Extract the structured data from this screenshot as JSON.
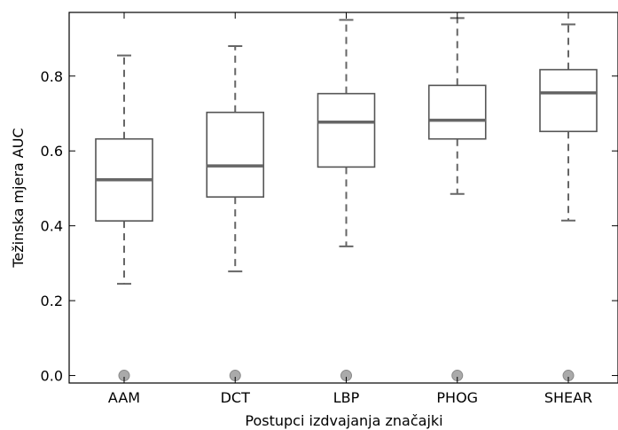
{
  "chart_data": {
    "type": "box",
    "title": "",
    "xlabel": "Postupci izdvajanja značajki",
    "ylabel": "Težinska mjera AUC",
    "ylim": [
      -0.02,
      0.97
    ],
    "yticks": [
      {
        "value": 0.0,
        "label": "0.0"
      },
      {
        "value": 0.2,
        "label": "0.2"
      },
      {
        "value": 0.4,
        "label": "0.4"
      },
      {
        "value": 0.6,
        "label": "0.6"
      },
      {
        "value": 0.8,
        "label": "0.8"
      }
    ],
    "grid": false,
    "boxes": [
      {
        "category": "AAM",
        "whisker_low": 0.245,
        "q1": 0.413,
        "median": 0.523,
        "q3": 0.632,
        "whisker_high": 0.855,
        "outliers": [
          0.0
        ]
      },
      {
        "category": "DCT",
        "whisker_low": 0.278,
        "q1": 0.477,
        "median": 0.56,
        "q3": 0.703,
        "whisker_high": 0.88,
        "outliers": [
          0.0
        ]
      },
      {
        "category": "LBP",
        "whisker_low": 0.345,
        "q1": 0.557,
        "median": 0.677,
        "q3": 0.753,
        "whisker_high": 0.95,
        "outliers": [
          0.0
        ]
      },
      {
        "category": "PHOG",
        "whisker_low": 0.485,
        "q1": 0.632,
        "median": 0.682,
        "q3": 0.775,
        "whisker_high": 0.955,
        "outliers": [
          0.0
        ]
      },
      {
        "category": "SHEAR",
        "whisker_low": 0.414,
        "q1": 0.652,
        "median": 0.755,
        "q3": 0.817,
        "whisker_high": 0.938,
        "outliers": [
          0.0
        ]
      }
    ],
    "colors": {
      "box_edge": "#555555",
      "median": "#666666",
      "whisker": "#666666",
      "outlier_fill": "#aaaaaa",
      "outlier_edge": "#888888",
      "axes": "#000000"
    }
  }
}
